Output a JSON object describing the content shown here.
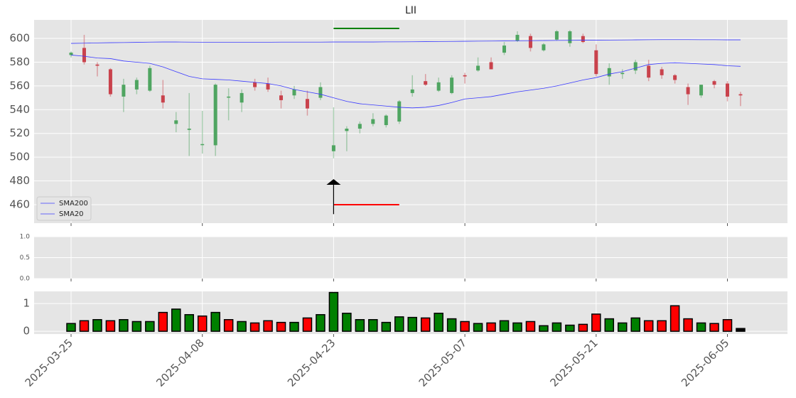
{
  "chart_data": [
    {
      "type": "candlestick",
      "title": "LII",
      "categories": [
        "2025-03-25",
        null,
        null,
        null,
        null,
        null,
        null,
        null,
        null,
        null,
        "2025-04-08",
        null,
        null,
        null,
        null,
        null,
        null,
        null,
        null,
        null,
        "2025-04-23",
        null,
        null,
        null,
        null,
        null,
        null,
        null,
        null,
        null,
        "2025-05-07",
        null,
        null,
        null,
        null,
        null,
        null,
        null,
        null,
        null,
        "2025-05-21",
        null,
        null,
        null,
        null,
        null,
        null,
        null,
        null,
        null,
        "2025-06-05",
        null
      ],
      "open": [
        586,
        592,
        578,
        574,
        551,
        557,
        556,
        552,
        528,
        523,
        511,
        510,
        551,
        546,
        563,
        562,
        552,
        552,
        549,
        550,
        505,
        522,
        524,
        528,
        527,
        530,
        554,
        564,
        556,
        554,
        569,
        573,
        580,
        588,
        598,
        602,
        590,
        599,
        596,
        602,
        590,
        568,
        570,
        573,
        577,
        574,
        569,
        559,
        552,
        564,
        562,
        553
      ],
      "high": [
        589,
        603,
        580,
        575,
        566,
        567,
        577,
        565,
        538,
        554,
        539,
        562,
        558,
        557,
        566,
        567,
        556,
        560,
        556,
        563,
        542,
        526,
        530,
        537,
        536,
        548,
        569,
        570,
        567,
        569,
        571,
        584,
        584,
        597,
        606,
        604,
        596,
        607,
        607,
        604,
        595,
        579,
        574,
        582,
        582,
        576,
        570,
        562,
        561,
        565,
        564,
        555
      ],
      "low": [
        584,
        578,
        568,
        551,
        538,
        553,
        555,
        541,
        521,
        501,
        503,
        501,
        531,
        538,
        556,
        555,
        541,
        549,
        535,
        548,
        499,
        505,
        520,
        526,
        525,
        528,
        551,
        560,
        555,
        553,
        562,
        572,
        574,
        586,
        597,
        589,
        589,
        598,
        593,
        596,
        568,
        561,
        566,
        570,
        564,
        566,
        562,
        544,
        550,
        558,
        547,
        543
      ],
      "close": [
        588,
        580,
        577,
        553,
        561,
        565,
        575,
        546,
        531,
        524,
        511,
        561,
        551,
        554,
        559,
        557,
        548,
        557,
        541,
        559,
        510,
        524,
        528,
        532,
        535,
        547,
        557,
        561,
        563,
        567,
        568,
        577,
        574,
        594,
        603,
        592,
        595,
        606,
        606,
        597,
        570,
        575,
        571,
        580,
        567,
        569,
        565,
        553,
        561,
        561,
        551,
        552
      ],
      "up_color": "#4fa561",
      "down_color": "#c9424c",
      "series": [
        {
          "name": "SMA200",
          "color": "#3b3bff",
          "values": [
            595.8,
            596,
            596.2,
            596.4,
            596.5,
            596.7,
            596.9,
            597,
            597,
            596.9,
            596.8,
            596.8,
            596.8,
            596.8,
            596.8,
            596.8,
            596.9,
            596.9,
            596.9,
            596.9,
            597,
            597,
            597,
            597,
            597.1,
            597.1,
            597.2,
            597.3,
            597.4,
            597.5,
            597.6,
            597.7,
            597.8,
            597.9,
            598,
            598.1,
            598.2,
            598.3,
            598.4,
            598.5,
            598.5,
            598.6,
            598.7,
            598.8,
            598.9,
            599,
            599,
            599,
            598.9,
            598.9,
            598.8,
            598.8
          ]
        },
        {
          "name": "SMA20",
          "color": "#3b3bff",
          "values": [
            586,
            585,
            583.5,
            583,
            581,
            580,
            579,
            576,
            572,
            568,
            566,
            565.5,
            565,
            564,
            563,
            562,
            560,
            557,
            555,
            553,
            550,
            547,
            545,
            544,
            543,
            542,
            541.5,
            542,
            543.5,
            546,
            549,
            550,
            551,
            553,
            555,
            556.5,
            558,
            560,
            562.5,
            565,
            567,
            570,
            572,
            575,
            578,
            579,
            579.5,
            579,
            578.5,
            578,
            577,
            576.5
          ]
        }
      ],
      "legend": "lower left",
      "ylim": [
        444.4,
        615.6
      ],
      "yticks": [
        460,
        480,
        500,
        520,
        540,
        560,
        580,
        600
      ],
      "grid": true,
      "levels": [
        {
          "value": 608.4,
          "color": "#008000",
          "start": 20,
          "end": 25
        },
        {
          "value": 460,
          "color": "#ff0000",
          "start": 20,
          "end": 25
        }
      ],
      "arrow": {
        "at": 20,
        "from": 452,
        "to": 481.5,
        "color": "#000000"
      }
    },
    {
      "type": "empty",
      "ylim": [
        0,
        1
      ],
      "yticks": [
        {
          "value": 0,
          "label": "0.0"
        },
        {
          "value": 0.5,
          "label": "0.5"
        },
        {
          "value": 1,
          "label": "1.0"
        }
      ]
    },
    {
      "type": "bar",
      "values": [
        0.28,
        0.38,
        0.42,
        0.38,
        0.42,
        0.35,
        0.35,
        0.68,
        0.8,
        0.6,
        0.55,
        0.68,
        0.42,
        0.35,
        0.3,
        0.38,
        0.32,
        0.32,
        0.48,
        0.6,
        1.4,
        0.65,
        0.42,
        0.42,
        0.32,
        0.52,
        0.5,
        0.48,
        0.65,
        0.45,
        0.35,
        0.28,
        0.3,
        0.38,
        0.3,
        0.35,
        0.2,
        0.3,
        0.22,
        0.25,
        0.62,
        0.45,
        0.3,
        0.48,
        0.38,
        0.38,
        0.92,
        0.45,
        0.3,
        0.28,
        0.42,
        0.1
      ],
      "colors": [
        "#008000",
        "#ff0000",
        "#008000",
        "#ff0000",
        "#008000",
        "#008000",
        "#008000",
        "#ff0000",
        "#008000",
        "#008000",
        "#ff0000",
        "#008000",
        "#ff0000",
        "#008000",
        "#ff0000",
        "#ff0000",
        "#ff0000",
        "#008000",
        "#ff0000",
        "#008000",
        "#008000",
        "#008000",
        "#008000",
        "#008000",
        "#008000",
        "#008000",
        "#008000",
        "#ff0000",
        "#008000",
        "#008000",
        "#ff0000",
        "#008000",
        "#ff0000",
        "#008000",
        "#008000",
        "#ff0000",
        "#008000",
        "#008000",
        "#008000",
        "#ff0000",
        "#ff0000",
        "#008000",
        "#008000",
        "#008000",
        "#ff0000",
        "#ff0000",
        "#ff0000",
        "#ff0000",
        "#008000",
        "#ff0000",
        "#ff0000",
        "#000000"
      ],
      "ylim": [
        -0.1,
        1.44
      ],
      "yticks": [
        0,
        1
      ]
    }
  ]
}
